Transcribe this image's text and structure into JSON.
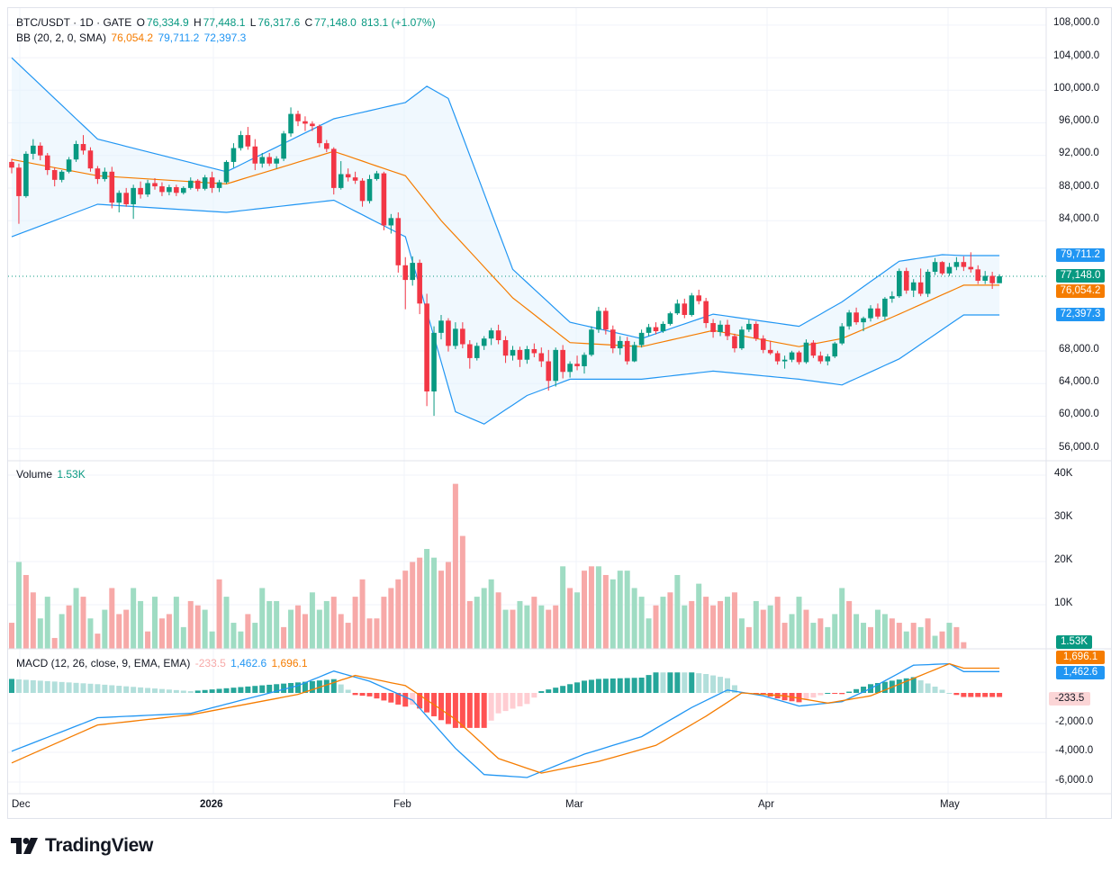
{
  "header": {
    "symbol": "BTC/USDT · 1D · GATE",
    "o_label": "O",
    "o_value": "76,334.9",
    "h_label": "H",
    "h_value": "77,448.1",
    "l_label": "L",
    "l_value": "76,317.6",
    "c_label": "C",
    "c_value": "77,148.0",
    "change": "813.1 (+1.07%)"
  },
  "bb_legend": {
    "label": "BB (20, 2, 0, SMA)",
    "basis": "76,054.2",
    "upper": "79,711.2",
    "lower": "72,397.3"
  },
  "volume_legend": {
    "label": "Volume",
    "value": "1.53K"
  },
  "macd_legend": {
    "label": "MACD (12, 26, close, 9, EMA, EMA)",
    "hist": "-233.5",
    "macd": "1,462.6",
    "signal": "1,696.1"
  },
  "badges": {
    "upper": "79,711.2",
    "close": "77,148.0",
    "basis": "76,054.2",
    "lower": "72,397.3",
    "volume": "1.53K",
    "signal": "1,696.1",
    "macd": "1,462.6",
    "hist": "-233.5"
  },
  "colors": {
    "up": "#089981",
    "down": "#f23645",
    "upper_band": "#2196f3",
    "basis": "#f57c00",
    "band_fill": "#e3f2fd",
    "vol_up": "#9fdcc3",
    "vol_down": "#f7a9a8"
  },
  "price_axis": [
    "108,000.0",
    "104,000.0",
    "100,000.0",
    "96,000.0",
    "92,000.0",
    "88,000.0",
    "84,000.0",
    "68,000.0",
    "64,000.0",
    "60,000.0",
    "56,000.0"
  ],
  "volume_axis": [
    "40K",
    "30K",
    "20K",
    "10K"
  ],
  "macd_axis": [
    "-2,000.0",
    "-4,000.0",
    "-6,000.0"
  ],
  "time_axis": [
    "Dec",
    "2026",
    "Feb",
    "Mar",
    "Apr",
    "May"
  ],
  "logo_text": "TradingView",
  "chart_data": {
    "type": "candlestick",
    "symbol": "BTC/USDT",
    "interval": "1D",
    "exchange": "GATE",
    "x_range": [
      "Nov 30 2025",
      "May 1 2026"
    ],
    "y_range": [
      54000,
      110000
    ],
    "ohlc_approx": [
      [
        91200,
        91600,
        89800,
        90500
      ],
      [
        90500,
        91000,
        83600,
        87000
      ],
      [
        87000,
        92500,
        86800,
        92200
      ],
      [
        92200,
        94000,
        91500,
        93200
      ],
      [
        93200,
        93600,
        91400,
        92000
      ],
      [
        92000,
        92300,
        89600,
        90200
      ],
      [
        90200,
        90500,
        88200,
        89000
      ],
      [
        89000,
        90200,
        88700,
        90000
      ],
      [
        90000,
        91800,
        89800,
        91500
      ],
      [
        91500,
        93800,
        91200,
        93400
      ],
      [
        93400,
        94500,
        92100,
        92600
      ],
      [
        92600,
        93000,
        90000,
        90400
      ],
      [
        90400,
        90700,
        88500,
        89100
      ],
      [
        89100,
        90500,
        88800,
        90000
      ],
      [
        90000,
        90600,
        85500,
        86200
      ],
      [
        86200,
        87700,
        85000,
        87400
      ],
      [
        87400,
        88000,
        85700,
        86000
      ],
      [
        86000,
        88400,
        84200,
        88000
      ],
      [
        88000,
        88800,
        86700,
        87200
      ],
      [
        87200,
        89000,
        86900,
        88600
      ],
      [
        88600,
        89200,
        87800,
        88200
      ],
      [
        88200,
        88700,
        87000,
        87500
      ],
      [
        87500,
        88400,
        87100,
        88100
      ],
      [
        88100,
        88400,
        87000,
        87400
      ],
      [
        87400,
        88200,
        87200,
        88000
      ],
      [
        88000,
        89300,
        87800,
        88900
      ],
      [
        88900,
        89100,
        87600,
        87900
      ],
      [
        87900,
        89600,
        87700,
        89300
      ],
      [
        89300,
        90000,
        87400,
        88000
      ],
      [
        88000,
        89000,
        87500,
        88700
      ],
      [
        88700,
        91400,
        88500,
        91200
      ],
      [
        91200,
        93500,
        90500,
        92900
      ],
      [
        92900,
        95000,
        92600,
        94500
      ],
      [
        94500,
        95500,
        92700,
        93100
      ],
      [
        93100,
        94000,
        90200,
        91000
      ],
      [
        91000,
        92300,
        90500,
        91800
      ],
      [
        91800,
        92300,
        90700,
        91000
      ],
      [
        91000,
        91900,
        90400,
        91600
      ],
      [
        91600,
        95000,
        91300,
        94700
      ],
      [
        94700,
        97900,
        94300,
        97100
      ],
      [
        97100,
        97500,
        95600,
        96200
      ],
      [
        96200,
        96800,
        95000,
        95900
      ],
      [
        95900,
        96200,
        95000,
        95600
      ],
      [
        95600,
        95800,
        93000,
        93500
      ],
      [
        93500,
        93900,
        92400,
        92800
      ],
      [
        92800,
        93000,
        87200,
        88000
      ],
      [
        88000,
        91300,
        87800,
        89700
      ],
      [
        89700,
        90400,
        88800,
        89300
      ],
      [
        89300,
        90000,
        88500,
        88900
      ],
      [
        88900,
        89200,
        85700,
        86400
      ],
      [
        86400,
        89600,
        86100,
        89100
      ],
      [
        89100,
        90100,
        88900,
        89800
      ],
      [
        89800,
        90000,
        82800,
        83400
      ],
      [
        83400,
        84800,
        82400,
        84300
      ],
      [
        84300,
        85000,
        77600,
        78500
      ],
      [
        78500,
        79500,
        73100,
        76700
      ],
      [
        76700,
        79600,
        76000,
        78800
      ],
      [
        78800,
        79200,
        72500,
        73800
      ],
      [
        73800,
        75000,
        61200,
        63000
      ],
      [
        63000,
        71000,
        60000,
        70200
      ],
      [
        70200,
        72400,
        69400,
        71700
      ],
      [
        71700,
        72000,
        67900,
        68600
      ],
      [
        68600,
        71500,
        68200,
        70700
      ],
      [
        70700,
        71500,
        68300,
        68800
      ],
      [
        68800,
        69300,
        65800,
        67100
      ],
      [
        67100,
        69000,
        66800,
        68600
      ],
      [
        68600,
        69800,
        68100,
        69500
      ],
      [
        69500,
        70800,
        68700,
        70500
      ],
      [
        70500,
        71200,
        68800,
        69300
      ],
      [
        69300,
        69800,
        66500,
        67400
      ],
      [
        67400,
        68600,
        66800,
        68100
      ],
      [
        68100,
        68500,
        66000,
        66900
      ],
      [
        66900,
        68600,
        66400,
        68200
      ],
      [
        68200,
        68900,
        67200,
        67700
      ],
      [
        67700,
        68400,
        66000,
        66700
      ],
      [
        66700,
        68100,
        63100,
        64300
      ],
      [
        64300,
        68400,
        63600,
        68100
      ],
      [
        68100,
        68700,
        64600,
        65400
      ],
      [
        65400,
        66700,
        64700,
        66400
      ],
      [
        66400,
        67400,
        65600,
        66100
      ],
      [
        66100,
        67800,
        65200,
        67500
      ],
      [
        67500,
        71000,
        67300,
        70600
      ],
      [
        70600,
        73400,
        70200,
        72900
      ],
      [
        72900,
        73300,
        70000,
        70600
      ],
      [
        70600,
        71100,
        67700,
        68300
      ],
      [
        68300,
        69800,
        67500,
        69200
      ],
      [
        69200,
        69700,
        66300,
        66700
      ],
      [
        66700,
        69100,
        66600,
        68700
      ],
      [
        68700,
        70600,
        68400,
        70200
      ],
      [
        70200,
        71300,
        69800,
        70900
      ],
      [
        70900,
        71500,
        70000,
        70400
      ],
      [
        70400,
        71600,
        70200,
        71300
      ],
      [
        71300,
        72800,
        71100,
        72600
      ],
      [
        72600,
        74300,
        72400,
        73800
      ],
      [
        73800,
        74400,
        72000,
        72400
      ],
      [
        72400,
        75100,
        72200,
        74800
      ],
      [
        74800,
        75500,
        73700,
        74100
      ],
      [
        74100,
        74500,
        70800,
        71400
      ],
      [
        71400,
        71900,
        69600,
        70300
      ],
      [
        70300,
        71700,
        69800,
        71200
      ],
      [
        71200,
        71800,
        69300,
        69800
      ],
      [
        69800,
        70100,
        67800,
        68300
      ],
      [
        68300,
        71000,
        68100,
        70600
      ],
      [
        70600,
        71800,
        70300,
        71300
      ],
      [
        71300,
        71600,
        69200,
        69500
      ],
      [
        69500,
        69900,
        67700,
        68100
      ],
      [
        68100,
        69200,
        67500,
        67700
      ],
      [
        67700,
        68000,
        66300,
        66700
      ],
      [
        66700,
        67400,
        65800,
        66900
      ],
      [
        66900,
        68000,
        66600,
        67800
      ],
      [
        67800,
        68000,
        66300,
        66600
      ],
      [
        66600,
        69400,
        66400,
        69000
      ],
      [
        69000,
        69300,
        67100,
        67400
      ],
      [
        67400,
        67900,
        66400,
        66700
      ],
      [
        66700,
        67600,
        66200,
        67300
      ],
      [
        67300,
        69100,
        67100,
        68900
      ],
      [
        68900,
        71400,
        68700,
        71000
      ],
      [
        71000,
        73000,
        70600,
        72700
      ],
      [
        72700,
        73300,
        71200,
        71500
      ],
      [
        71500,
        72200,
        70400,
        72000
      ],
      [
        72000,
        73600,
        71600,
        73200
      ],
      [
        73200,
        73800,
        71900,
        72200
      ],
      [
        72200,
        74600,
        71800,
        74400
      ],
      [
        74400,
        75300,
        73900,
        74700
      ],
      [
        74700,
        78100,
        74500,
        77800
      ],
      [
        77800,
        78200,
        75000,
        75400
      ],
      [
        75400,
        76800,
        74600,
        76400
      ],
      [
        76400,
        78100,
        74700,
        75000
      ],
      [
        75000,
        78000,
        74600,
        77700
      ],
      [
        77700,
        79400,
        77300,
        78900
      ],
      [
        78900,
        79000,
        77300,
        77500
      ],
      [
        77500,
        78800,
        77200,
        78300
      ],
      [
        78300,
        79500,
        77900,
        78900
      ],
      [
        78900,
        79600,
        77800,
        78300
      ],
      [
        78300,
        80100,
        77600,
        78000
      ],
      [
        78000,
        78500,
        76200,
        76600
      ],
      [
        76600,
        77800,
        76200,
        77200
      ],
      [
        77200,
        77700,
        75600,
        76300
      ],
      [
        76300,
        77400,
        76300,
        77148
      ]
    ],
    "bollinger": {
      "period": 20,
      "stddev": 2,
      "basis_last": 76054.2,
      "upper_last": 79711.2,
      "lower_last": 72397.3,
      "upper_approx": [
        [
          0,
          104000
        ],
        [
          12,
          94000
        ],
        [
          30,
          90000
        ],
        [
          45,
          96500
        ],
        [
          55,
          98500
        ],
        [
          58,
          100500
        ],
        [
          61,
          99000
        ],
        [
          70,
          78000
        ],
        [
          78,
          71500
        ],
        [
          88,
          69500
        ],
        [
          98,
          72500
        ],
        [
          110,
          71000
        ],
        [
          116,
          74000
        ],
        [
          124,
          79000
        ],
        [
          130,
          79800
        ],
        [
          133,
          79700
        ]
      ],
      "basis_approx": [
        [
          0,
          91500
        ],
        [
          12,
          89500
        ],
        [
          30,
          88500
        ],
        [
          45,
          92500
        ],
        [
          55,
          89500
        ],
        [
          60,
          84000
        ],
        [
          70,
          74500
        ],
        [
          78,
          69000
        ],
        [
          88,
          68500
        ],
        [
          98,
          70500
        ],
        [
          110,
          68500
        ],
        [
          116,
          69500
        ],
        [
          124,
          72500
        ],
        [
          133,
          76054
        ]
      ],
      "lower_approx": [
        [
          0,
          82000
        ],
        [
          12,
          86000
        ],
        [
          30,
          85000
        ],
        [
          45,
          86500
        ],
        [
          55,
          82000
        ],
        [
          62,
          60500
        ],
        [
          66,
          59000
        ],
        [
          72,
          62500
        ],
        [
          78,
          64500
        ],
        [
          88,
          64500
        ],
        [
          98,
          65500
        ],
        [
          110,
          64500
        ],
        [
          116,
          63800
        ],
        [
          124,
          67000
        ],
        [
          133,
          72400
        ]
      ]
    },
    "volume": {
      "last": "1.53K",
      "y_range": [
        0,
        42000
      ],
      "values_approx": [
        6000,
        20000,
        17000,
        13000,
        7000,
        12000,
        2500,
        8000,
        10000,
        14000,
        12000,
        7000,
        3500,
        9000,
        14000,
        8000,
        9000,
        14000,
        11000,
        4000,
        12000,
        7000,
        8000,
        12000,
        5000,
        11000,
        10000,
        9000,
        4000,
        16000,
        12000,
        6000,
        4000,
        8000,
        6000,
        14000,
        11000,
        11000,
        5000,
        9000,
        10000,
        8000,
        13000,
        9000,
        11000,
        12000,
        8000,
        6000,
        12000,
        16000,
        7000,
        7000,
        12000,
        14000,
        16000,
        18000,
        20000,
        21000,
        23000,
        21000,
        18000,
        20000,
        38000,
        26000,
        11000,
        12000,
        14000,
        16000,
        13000,
        9000,
        9000,
        11000,
        10000,
        12000,
        10000,
        9000,
        10000,
        19000,
        14000,
        13000,
        18000,
        19000,
        19000,
        17000,
        16000,
        18000,
        18000,
        14000,
        12000,
        7000,
        10000,
        12000,
        13000,
        17000,
        10000,
        11000,
        15000,
        12000,
        10000,
        11000,
        12000,
        13000,
        7000,
        5000,
        11000,
        9000,
        10000,
        12000,
        6000,
        8000,
        12000,
        9000,
        6000,
        7000,
        5000,
        8000,
        14000,
        11000,
        8000,
        6000,
        5000,
        9000,
        8000,
        7000,
        6000,
        4000,
        6000,
        5000,
        7000,
        3000,
        4000,
        6000,
        5000,
        1530
      ],
      "up_mask": "0100110101010100011010011001101110111101001110000000000000110000011101011010010100101111110101101000101010100110101110110110010101"
    },
    "macd": {
      "fast": 12,
      "slow": 26,
      "signal_period": 9,
      "macd_last": 1462.6,
      "signal_last": 1696.1,
      "hist_last": -233.5,
      "y_range": [
        -7000,
        3200
      ],
      "macd_approx": [
        [
          0,
          -4000
        ],
        [
          12,
          -1700
        ],
        [
          25,
          -1400
        ],
        [
          40,
          500
        ],
        [
          45,
          1500
        ],
        [
          50,
          800
        ],
        [
          56,
          -500
        ],
        [
          62,
          -3800
        ],
        [
          66,
          -5600
        ],
        [
          72,
          -5800
        ],
        [
          80,
          -4200
        ],
        [
          88,
          -3000
        ],
        [
          95,
          -1000
        ],
        [
          100,
          200
        ],
        [
          105,
          -200
        ],
        [
          110,
          -900
        ],
        [
          116,
          -600
        ],
        [
          120,
          300
        ],
        [
          126,
          1900
        ],
        [
          131,
          2000
        ],
        [
          133,
          1462.6
        ]
      ],
      "signal_approx": [
        [
          0,
          -4800
        ],
        [
          12,
          -2200
        ],
        [
          25,
          -1500
        ],
        [
          40,
          -100
        ],
        [
          48,
          1200
        ],
        [
          55,
          500
        ],
        [
          62,
          -1800
        ],
        [
          68,
          -4500
        ],
        [
          74,
          -5500
        ],
        [
          82,
          -4700
        ],
        [
          90,
          -3600
        ],
        [
          97,
          -1600
        ],
        [
          102,
          0
        ],
        [
          108,
          -200
        ],
        [
          114,
          -700
        ],
        [
          120,
          -200
        ],
        [
          126,
          1000
        ],
        [
          131,
          2000
        ],
        [
          133,
          1696.1
        ]
      ]
    }
  }
}
